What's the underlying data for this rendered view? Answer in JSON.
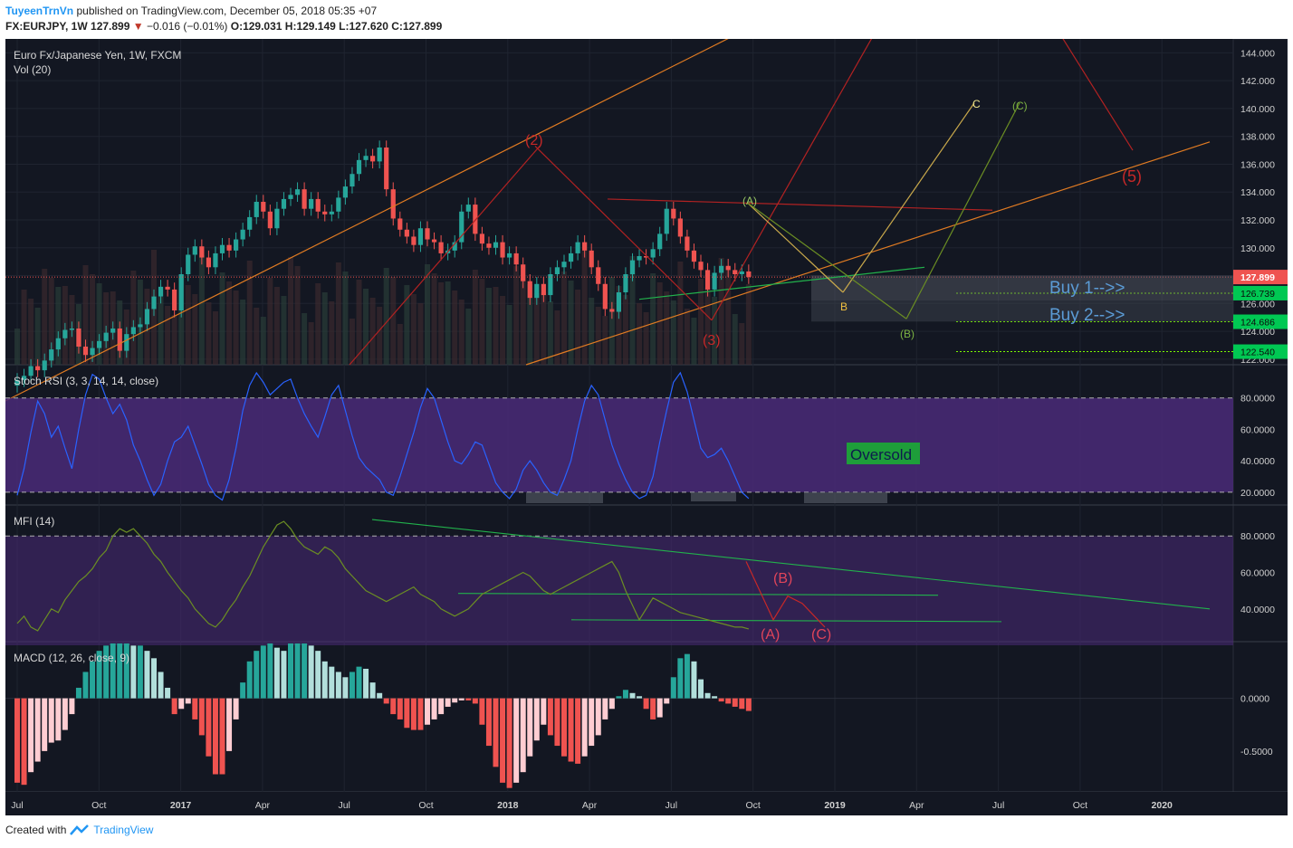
{
  "header": {
    "author": "TuyeenTrnVn",
    "published": "published on TradingView.com, December 05, 2018 05:35 +07",
    "symbol": "FX:EURJPY, 1W",
    "last": "127.899",
    "change": "−0.016 (−0.01%)",
    "ohlc": "O:129.031 H:129.149 L:127.620 C:127.899"
  },
  "footer": {
    "created": "Created with",
    "brand": "TradingView"
  },
  "colors": {
    "background": "#131722",
    "up": "#26a69a",
    "down": "#ef5350",
    "stoch_band": "#4a2a78",
    "stoch_line": "#2962ff",
    "mfi_line": "#6b8e23",
    "macd_up": "#26a69a",
    "macd_up_light": "#b2dfdb",
    "macd_down": "#ef5350",
    "macd_down_light": "#ffcdd2"
  },
  "chart_data": [
    {
      "type": "candlestick",
      "title": "Euro Fx/Japanese Yen, 1W, FXCM",
      "subtitle": "Vol (20)",
      "x_ticks": [
        "Jul",
        "Oct",
        "2017",
        "Apr",
        "Jul",
        "Oct",
        "2018",
        "Apr",
        "Jul",
        "Oct",
        "2019",
        "Apr",
        "Jul",
        "Oct",
        "2020"
      ],
      "y_ticks": [
        "122.000",
        "124.000",
        "126.000",
        "128.000",
        "130.000",
        "132.000",
        "134.000",
        "136.000",
        "138.000",
        "140.000",
        "142.000",
        "144.000"
      ],
      "ylim": [
        121.6,
        145.0
      ],
      "last_price_label": "127.899",
      "price_labels": [
        {
          "value": 126.739,
          "text": "126.739"
        },
        {
          "value": 124.686,
          "text": "124.686"
        },
        {
          "value": 122.54,
          "text": "122.540"
        }
      ],
      "close_path": [
        120.5,
        120.8,
        121.5,
        121.2,
        121.9,
        122.7,
        123.5,
        124.1,
        124.2,
        122.9,
        122.3,
        122.8,
        123.3,
        123.9,
        124.2,
        122.6,
        123.8,
        124.3,
        124.5,
        125.6,
        126.5,
        127.2,
        127.0,
        125.5,
        128.1,
        129.5,
        130.1,
        129.3,
        128.6,
        129.6,
        130.2,
        129.8,
        130.6,
        131.3,
        132.2,
        133.3,
        132.6,
        131.4,
        132.8,
        133.5,
        133.8,
        134.2,
        132.8,
        133.5,
        132.6,
        132.4,
        132.6,
        133.6,
        134.4,
        135.3,
        136.3,
        136.6,
        136.2,
        137.2,
        134.2,
        132.1,
        131.3,
        130.8,
        130.2,
        131.4,
        130.6,
        130.4,
        129.6,
        129.8,
        130.4,
        132.6,
        133.1,
        131.0,
        130.3,
        130.0,
        130.4,
        129.3,
        129.6,
        128.8,
        127.6,
        126.4,
        127.4,
        126.6,
        128.1,
        128.6,
        129.0,
        129.6,
        130.4,
        129.8,
        128.6,
        127.4,
        125.6,
        125.4,
        126.8,
        128.1,
        129.1,
        129.4,
        129.3,
        129.9,
        131.0,
        132.8,
        132.1,
        130.8,
        129.8,
        129.0,
        128.4,
        127.0,
        128.2,
        128.7,
        128.4,
        128.1,
        128.3,
        127.9
      ],
      "annotations": [
        "(2)",
        "(3)",
        "(A)",
        "B",
        "C",
        "(B)",
        "(C)",
        "(5)",
        "Buy 1-->>",
        "Buy 2-->>"
      ]
    },
    {
      "type": "line",
      "title": "Stoch RSI (3, 3, 14, 14, close)",
      "y_ticks": [
        "20.0000",
        "40.0000",
        "60.0000",
        "80.0000"
      ],
      "ylim": [
        13,
        100
      ],
      "band": [
        20,
        80
      ],
      "values": [
        18,
        35,
        58,
        78,
        70,
        55,
        62,
        48,
        35,
        60,
        82,
        95,
        92,
        80,
        70,
        76,
        66,
        50,
        40,
        28,
        18,
        25,
        40,
        52,
        55,
        62,
        50,
        38,
        25,
        18,
        15,
        28,
        48,
        72,
        88,
        96,
        90,
        82,
        86,
        90,
        92,
        80,
        70,
        62,
        55,
        68,
        82,
        88,
        72,
        56,
        42,
        36,
        32,
        28,
        20,
        18,
        30,
        44,
        58,
        74,
        86,
        80,
        66,
        52,
        40,
        38,
        44,
        52,
        50,
        38,
        26,
        20,
        16,
        22,
        34,
        40,
        34,
        26,
        20,
        18,
        28,
        40,
        60,
        78,
        88,
        82,
        66,
        50,
        38,
        28,
        20,
        16,
        18,
        30,
        52,
        72,
        90,
        96,
        84,
        66,
        48,
        42,
        44,
        48,
        40,
        30,
        20,
        16
      ],
      "annotation": "Oversold"
    },
    {
      "type": "line",
      "title": "MFI (14)",
      "y_ticks": [
        "40.0000",
        "60.0000",
        "80.0000"
      ],
      "ylim": [
        23,
        96
      ],
      "values": [
        32,
        36,
        30,
        28,
        34,
        40,
        38,
        45,
        50,
        55,
        58,
        62,
        68,
        72,
        80,
        84,
        82,
        84,
        80,
        76,
        70,
        66,
        60,
        55,
        50,
        46,
        40,
        36,
        32,
        30,
        34,
        40,
        45,
        52,
        58,
        66,
        74,
        80,
        86,
        88,
        84,
        78,
        74,
        72,
        70,
        74,
        72,
        68,
        62,
        58,
        54,
        50,
        48,
        46,
        44,
        46,
        48,
        50,
        52,
        48,
        46,
        44,
        40,
        38,
        36,
        38,
        40,
        44,
        48,
        50,
        52,
        54,
        56,
        58,
        60,
        58,
        54,
        50,
        48,
        50,
        52,
        54,
        56,
        58,
        60,
        62,
        64,
        66,
        60,
        50,
        42,
        34,
        40,
        46,
        44,
        42,
        40,
        38,
        37,
        36,
        35,
        34,
        33,
        32,
        31,
        30,
        30,
        29
      ],
      "annotations": [
        "(A)",
        "(B)",
        "(C)"
      ]
    },
    {
      "type": "bar",
      "title": "MACD (12, 26, close, 9)",
      "y_ticks": [
        "0.0000",
        "-0.5000"
      ],
      "ylim": [
        -0.87,
        0.52
      ],
      "values": [
        -0.8,
        -0.82,
        -0.7,
        -0.6,
        -0.5,
        -0.42,
        -0.4,
        -0.3,
        -0.15,
        0.1,
        0.25,
        0.35,
        0.45,
        0.5,
        0.52,
        0.52,
        0.52,
        0.5,
        0.5,
        0.45,
        0.38,
        0.25,
        0.1,
        -0.15,
        -0.1,
        -0.05,
        -0.2,
        -0.35,
        -0.55,
        -0.72,
        -0.72,
        -0.5,
        -0.2,
        0.15,
        0.35,
        0.45,
        0.5,
        0.52,
        0.48,
        0.45,
        0.52,
        0.52,
        0.52,
        0.5,
        0.45,
        0.35,
        0.3,
        0.25,
        0.2,
        0.25,
        0.3,
        0.28,
        0.15,
        0.05,
        -0.05,
        -0.15,
        -0.2,
        -0.28,
        -0.3,
        -0.3,
        -0.25,
        -0.2,
        -0.15,
        -0.08,
        -0.04,
        -0.02,
        -0.02,
        -0.05,
        -0.25,
        -0.45,
        -0.65,
        -0.8,
        -0.85,
        -0.8,
        -0.7,
        -0.55,
        -0.4,
        -0.25,
        -0.35,
        -0.45,
        -0.55,
        -0.6,
        -0.62,
        -0.55,
        -0.45,
        -0.35,
        -0.2,
        -0.1,
        0.02,
        0.08,
        0.05,
        0.02,
        -0.1,
        -0.2,
        -0.18,
        -0.05,
        0.2,
        0.38,
        0.42,
        0.35,
        0.18,
        0.05,
        0.02,
        -0.03,
        -0.05,
        -0.08,
        -0.1,
        -0.12
      ]
    }
  ]
}
